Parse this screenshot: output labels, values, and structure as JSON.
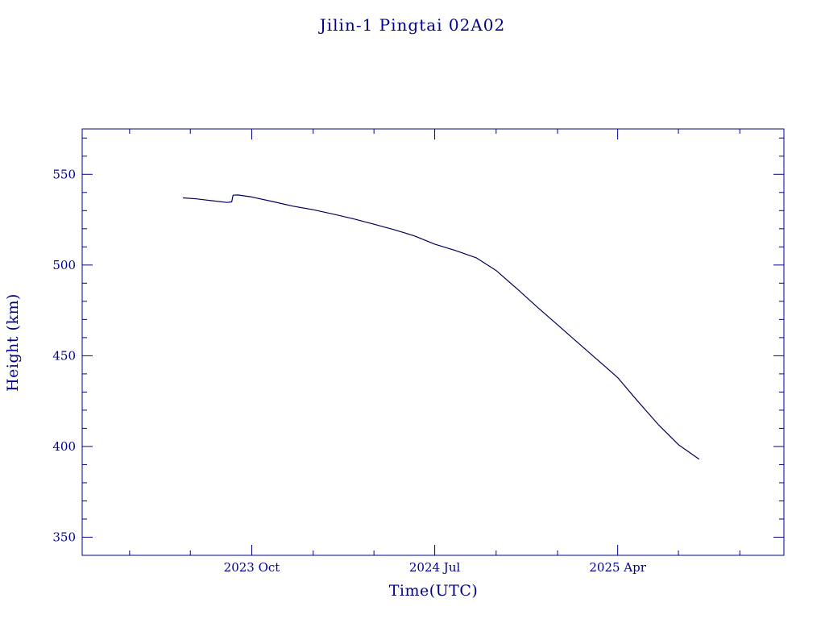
{
  "colors": {
    "axis": "#00008b",
    "line": "#00005a",
    "background": "#ffffff"
  },
  "chart_data": {
    "type": "line",
    "title": "Jilin-1 Pingtai 02A02",
    "xlabel": "Time(UTC)",
    "ylabel": "Height (km)",
    "ylim": [
      340,
      575
    ],
    "xlim": [
      "2023-01-20",
      "2025-12-06"
    ],
    "yticks": [
      350,
      400,
      450,
      500,
      550
    ],
    "ytick_labels": [
      "350",
      "400",
      "450",
      "500",
      "550"
    ],
    "y_minor_step": 10,
    "xticks": [
      "2023-10-01",
      "2024-07-01",
      "2025-04-01"
    ],
    "xtick_labels": [
      "2023 Oct",
      "2024 Jul",
      "2025 Apr"
    ],
    "x_minor_ticks": [
      "2023-04-01",
      "2023-07-01",
      "2024-01-01",
      "2024-04-01",
      "2024-10-01",
      "2025-01-01",
      "2025-07-01",
      "2025-10-01"
    ],
    "grid": false,
    "series": [
      {
        "x": [
          "2023-06-20",
          "2023-07-10",
          "2023-08-01",
          "2023-08-25",
          "2023-09-01",
          "2023-09-03",
          "2023-09-10",
          "2023-10-01",
          "2023-11-01",
          "2023-12-01",
          "2024-01-01",
          "2024-02-01",
          "2024-03-01",
          "2024-04-01",
          "2024-05-01",
          "2024-06-01",
          "2024-07-01",
          "2024-08-01",
          "2024-09-01",
          "2024-10-01",
          "2024-11-01",
          "2024-12-01",
          "2025-01-01",
          "2025-02-01",
          "2025-03-01",
          "2025-04-01",
          "2025-05-01",
          "2025-06-01",
          "2025-07-01",
          "2025-08-01"
        ],
        "y": [
          537,
          536.5,
          535.5,
          534.5,
          534.8,
          538.5,
          538.6,
          537.5,
          535,
          532.5,
          530.5,
          528,
          525.5,
          522.5,
          519.5,
          516,
          511.5,
          508,
          504,
          497,
          487,
          477,
          467,
          457,
          448,
          438,
          425,
          412,
          401,
          393
        ]
      }
    ]
  }
}
